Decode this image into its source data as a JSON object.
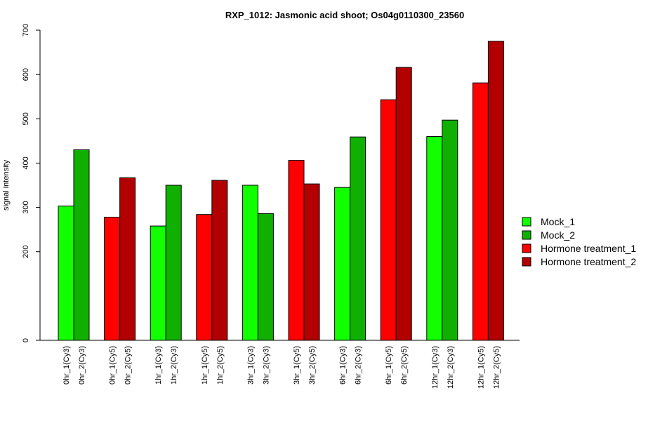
{
  "chart_data": {
    "type": "bar",
    "title": "RXP_1012: Jasmonic acid shoot; Os04g0110300_23560",
    "xlabel": "",
    "ylabel": "signal intensity",
    "ylim": [
      0,
      700
    ],
    "yticks": [
      0,
      200,
      300,
      400,
      500,
      600,
      700
    ],
    "grid": false,
    "legend_position": "right",
    "series": [
      {
        "name": "Mock_1",
        "color": "#12ff00"
      },
      {
        "name": "Mock_2",
        "color": "#10b000"
      },
      {
        "name": "Hormone treatment_1",
        "color": "#ff0000"
      },
      {
        "name": "Hormone treatment_2",
        "color": "#b20000"
      }
    ],
    "groups": [
      {
        "bars": [
          {
            "label": "0hr_1(Cy3)",
            "value": 303,
            "series": 0
          },
          {
            "label": "0hr_2(Cy3)",
            "value": 430,
            "series": 1
          }
        ]
      },
      {
        "bars": [
          {
            "label": "0hr_1(Cy5)",
            "value": 278,
            "series": 2
          },
          {
            "label": "0hr_2(Cy5)",
            "value": 367,
            "series": 3
          }
        ]
      },
      {
        "bars": [
          {
            "label": "1hr_1(Cy3)",
            "value": 258,
            "series": 0
          },
          {
            "label": "1hr_2(Cy3)",
            "value": 350,
            "series": 1
          }
        ]
      },
      {
        "bars": [
          {
            "label": "1hr_1(Cy5)",
            "value": 284,
            "series": 2
          },
          {
            "label": "1hr_2(Cy5)",
            "value": 361,
            "series": 3
          }
        ]
      },
      {
        "bars": [
          {
            "label": "3hr_1(Cy3)",
            "value": 350,
            "series": 0
          },
          {
            "label": "3hr_2(Cy3)",
            "value": 286,
            "series": 1
          }
        ]
      },
      {
        "bars": [
          {
            "label": "3hr_1(Cy5)",
            "value": 406,
            "series": 2
          },
          {
            "label": "3hr_2(Cy5)",
            "value": 353,
            "series": 3
          }
        ]
      },
      {
        "bars": [
          {
            "label": "6hr_1(Cy3)",
            "value": 345,
            "series": 0
          },
          {
            "label": "6hr_2(Cy3)",
            "value": 459,
            "series": 1
          }
        ]
      },
      {
        "bars": [
          {
            "label": "6hr_1(Cy5)",
            "value": 543,
            "series": 2
          },
          {
            "label": "6hr_2(Cy5)",
            "value": 616,
            "series": 3
          }
        ]
      },
      {
        "bars": [
          {
            "label": "12hr_1(Cy3)",
            "value": 460,
            "series": 0
          },
          {
            "label": "12hr_2(Cy3)",
            "value": 497,
            "series": 1
          }
        ]
      },
      {
        "bars": [
          {
            "label": "12hr_1(Cy5)",
            "value": 581,
            "series": 2
          },
          {
            "label": "12hr_2(Cy5)",
            "value": 675,
            "series": 3
          }
        ]
      }
    ]
  }
}
